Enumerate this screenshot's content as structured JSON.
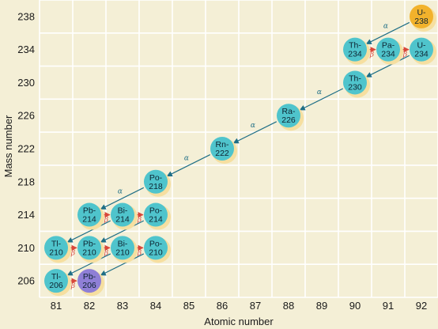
{
  "chart_data": {
    "type": "scatter",
    "title": "",
    "xlabel": "Atomic number",
    "ylabel": "Mass number",
    "xlim": [
      80.5,
      92.5
    ],
    "ylim": [
      204,
      240
    ],
    "x_ticks": [
      "81",
      "82",
      "83",
      "84",
      "85",
      "86",
      "87",
      "88",
      "89",
      "90",
      "91",
      "92"
    ],
    "y_ticks": [
      "206",
      "210",
      "214",
      "218",
      "222",
      "226",
      "230",
      "234",
      "238"
    ],
    "grid": true,
    "nuclides": [
      {
        "id": "u238",
        "label": [
          "U-",
          "238"
        ],
        "z": 92,
        "a": 238,
        "color": "#f2b22c"
      },
      {
        "id": "th234",
        "label": [
          "Th-",
          "234"
        ],
        "z": 90,
        "a": 234,
        "color": "#4fc4cc"
      },
      {
        "id": "pa234",
        "label": [
          "Pa-",
          "234"
        ],
        "z": 91,
        "a": 234,
        "color": "#4fc4cc"
      },
      {
        "id": "u234",
        "label": [
          "U-",
          "234"
        ],
        "z": 92,
        "a": 234,
        "color": "#4fc4cc"
      },
      {
        "id": "th230",
        "label": [
          "Th-",
          "230"
        ],
        "z": 90,
        "a": 230,
        "color": "#4fc4cc"
      },
      {
        "id": "ra226",
        "label": [
          "Ra-",
          "226"
        ],
        "z": 88,
        "a": 226,
        "color": "#4fc4cc"
      },
      {
        "id": "rn222",
        "label": [
          "Rn-",
          "222"
        ],
        "z": 86,
        "a": 222,
        "color": "#4fc4cc"
      },
      {
        "id": "po218",
        "label": [
          "Po-",
          "218"
        ],
        "z": 84,
        "a": 218,
        "color": "#4fc4cc"
      },
      {
        "id": "pb214",
        "label": [
          "Pb-",
          "214"
        ],
        "z": 82,
        "a": 214,
        "color": "#4fc4cc"
      },
      {
        "id": "bi214",
        "label": [
          "Bi-",
          "214"
        ],
        "z": 83,
        "a": 214,
        "color": "#4fc4cc"
      },
      {
        "id": "po214",
        "label": [
          "Po-",
          "214"
        ],
        "z": 84,
        "a": 214,
        "color": "#4fc4cc"
      },
      {
        "id": "tl210",
        "label": [
          "Tl-",
          "210"
        ],
        "z": 81,
        "a": 210,
        "color": "#4fc4cc"
      },
      {
        "id": "pb210",
        "label": [
          "Pb-",
          "210"
        ],
        "z": 82,
        "a": 210,
        "color": "#4fc4cc"
      },
      {
        "id": "bi210",
        "label": [
          "Bi-",
          "210"
        ],
        "z": 83,
        "a": 210,
        "color": "#4fc4cc"
      },
      {
        "id": "po210",
        "label": [
          "Po-",
          "210"
        ],
        "z": 84,
        "a": 210,
        "color": "#4fc4cc"
      },
      {
        "id": "tl206",
        "label": [
          "Tl-",
          "206"
        ],
        "z": 81,
        "a": 206,
        "color": "#4fc4cc"
      },
      {
        "id": "pb206",
        "label": [
          "Pb-",
          "206"
        ],
        "z": 82,
        "a": 206,
        "color": "#8f7fd6"
      }
    ],
    "decays": [
      {
        "from": "u238",
        "to": "th234",
        "type": "alpha",
        "symbol": "α"
      },
      {
        "from": "th234",
        "to": "pa234",
        "type": "beta",
        "symbol": "β"
      },
      {
        "from": "pa234",
        "to": "u234",
        "type": "beta",
        "symbol": "β"
      },
      {
        "from": "u234",
        "to": "th230",
        "type": "alpha",
        "symbol": "α"
      },
      {
        "from": "th230",
        "to": "ra226",
        "type": "alpha",
        "symbol": "α"
      },
      {
        "from": "ra226",
        "to": "rn222",
        "type": "alpha",
        "symbol": "α"
      },
      {
        "from": "rn222",
        "to": "po218",
        "type": "alpha",
        "symbol": "α"
      },
      {
        "from": "po218",
        "to": "pb214",
        "type": "alpha",
        "symbol": "α"
      },
      {
        "from": "pb214",
        "to": "bi214",
        "type": "beta",
        "symbol": "β"
      },
      {
        "from": "bi214",
        "to": "po214",
        "type": "beta",
        "symbol": "β"
      },
      {
        "from": "bi214",
        "to": "tl210",
        "type": "alpha",
        "symbol": "α"
      },
      {
        "from": "po214",
        "to": "pb210",
        "type": "alpha",
        "symbol": "α"
      },
      {
        "from": "tl210",
        "to": "pb210",
        "type": "beta",
        "symbol": "β"
      },
      {
        "from": "pb210",
        "to": "bi210",
        "type": "beta",
        "symbol": "β"
      },
      {
        "from": "bi210",
        "to": "po210",
        "type": "beta",
        "symbol": "β"
      },
      {
        "from": "bi210",
        "to": "tl206",
        "type": "alpha",
        "symbol": "α"
      },
      {
        "from": "po210",
        "to": "pb206",
        "type": "alpha",
        "symbol": "α"
      },
      {
        "from": "tl206",
        "to": "pb206",
        "type": "beta",
        "symbol": "β"
      }
    ],
    "colors": {
      "background": "#f4efd6",
      "grid": "#ffffff",
      "alpha_arrow": "#1e6e86",
      "beta_arrow": "#d8473a",
      "node_shadow": "#f6dfa0"
    }
  }
}
